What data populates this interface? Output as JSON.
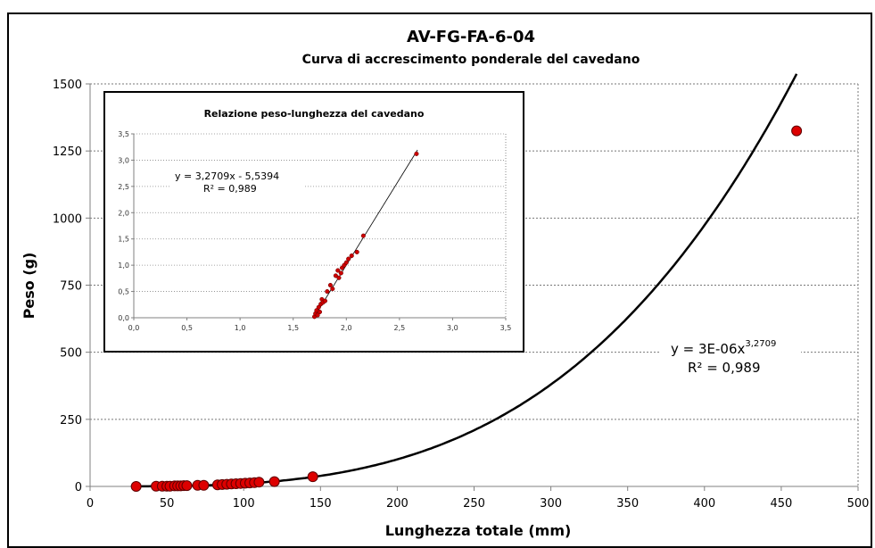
{
  "chart_data": [
    {
      "type": "scatter",
      "title": "AV-FG-FA-6-04",
      "subtitle": "Curva di accrescimento ponderale del cavedano",
      "xlabel": "Lunghezza totale (mm)",
      "ylabel": "Peso (g)",
      "xlim": [
        0,
        500
      ],
      "ylim": [
        0,
        1500
      ],
      "xticks": [
        "0",
        "50",
        "100",
        "150",
        "200",
        "250",
        "300",
        "350",
        "400",
        "450",
        "500"
      ],
      "yticks": [
        "0",
        "250",
        "500",
        "750",
        "1000",
        "1250",
        "1500"
      ],
      "grid": "horizontal dashed",
      "marker_color": "#dd0000",
      "trendline_color": "#000000",
      "series": [
        {
          "points": [
            [
              30,
              0
            ],
            [
              43,
              1
            ],
            [
              47,
              1
            ],
            [
              50,
              1
            ],
            [
              52,
              1
            ],
            [
              55,
              2
            ],
            [
              57,
              2
            ],
            [
              59,
              2
            ],
            [
              61,
              3
            ],
            [
              63,
              3
            ],
            [
              70,
              4
            ],
            [
              74,
              4
            ],
            [
              83,
              6
            ],
            [
              86,
              7
            ],
            [
              89,
              8
            ],
            [
              92,
              9
            ],
            [
              95,
              10
            ],
            [
              98,
              11
            ],
            [
              101,
              12
            ],
            [
              104,
              13
            ],
            [
              107,
              14
            ],
            [
              110,
              16
            ],
            [
              120,
              18
            ],
            [
              145,
              36
            ],
            [
              460,
              1325
            ]
          ]
        }
      ],
      "trendline": {
        "type": "power",
        "a": 3e-06,
        "b": 3.2709,
        "x_range": [
          30,
          460
        ],
        "equation_prefix": "y = 3E-06x",
        "equation_exponent": "3,2709",
        "r2_label": "R² = 0,989"
      }
    },
    {
      "type": "scatter",
      "title": "Relazione peso-lunghezza del cavedano",
      "xlim": [
        0,
        3.5
      ],
      "ylim": [
        0,
        3.5
      ],
      "xticks": [
        "0,0",
        "0,5",
        "1,0",
        "1,5",
        "2,0",
        "2,5",
        "3,0",
        "3,5"
      ],
      "yticks": [
        "0,0",
        "0,5",
        "1,0",
        "1,5",
        "2,0",
        "2,5",
        "3,0",
        "3,5"
      ],
      "grid": "horizontal dotted",
      "marker_color": "#cc0000",
      "series": [
        {
          "points": [
            [
              1.7,
              0.02
            ],
            [
              1.71,
              0.08
            ],
            [
              1.72,
              0.14
            ],
            [
              1.73,
              0.05
            ],
            [
              1.74,
              0.2
            ],
            [
              1.75,
              0.11
            ],
            [
              1.76,
              0.26
            ],
            [
              1.77,
              0.35
            ],
            [
              1.78,
              0.29
            ],
            [
              1.8,
              0.32
            ],
            [
              1.82,
              0.5
            ],
            [
              1.85,
              0.62
            ],
            [
              1.87,
              0.55
            ],
            [
              1.9,
              0.8
            ],
            [
              1.92,
              0.9
            ],
            [
              1.93,
              0.76
            ],
            [
              1.95,
              0.85
            ],
            [
              1.96,
              0.95
            ],
            [
              1.98,
              1.0
            ],
            [
              2.0,
              1.05
            ],
            [
              2.02,
              1.12
            ],
            [
              2.05,
              1.18
            ],
            [
              2.1,
              1.25
            ],
            [
              2.16,
              1.56
            ],
            [
              2.66,
              3.12
            ]
          ]
        }
      ],
      "trendline": {
        "type": "linear",
        "slope": 3.2709,
        "intercept": -5.5394,
        "equation": "y = 3,2709x - 5,5394",
        "r2_label": "R² = 0,989"
      }
    }
  ]
}
